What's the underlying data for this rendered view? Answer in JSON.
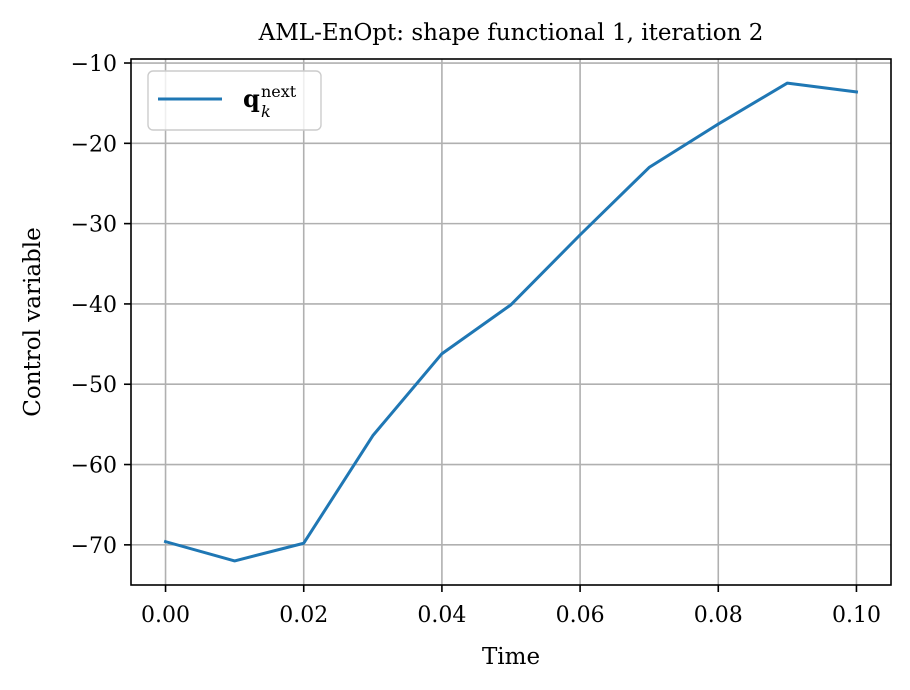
{
  "chart_data": {
    "type": "line",
    "title": "AML-EnOpt: shape functional 1, iteration 2",
    "xlabel": "Time",
    "ylabel": "Control variable",
    "xlim": [
      -0.005,
      0.105
    ],
    "ylim": [
      -75,
      -9.5
    ],
    "xticks": [
      0.0,
      0.02,
      0.04,
      0.06,
      0.08,
      0.1
    ],
    "xtick_labels": [
      "0.00",
      "0.02",
      "0.04",
      "0.06",
      "0.08",
      "0.10"
    ],
    "yticks": [
      -70,
      -60,
      -50,
      -40,
      -30,
      -20,
      -10
    ],
    "ytick_labels": [
      "−70",
      "−60",
      "−50",
      "−40",
      "−30",
      "−20",
      "−10"
    ],
    "grid": true,
    "legend_position": "top-left",
    "series": [
      {
        "name": "q",
        "name_sup": "next",
        "name_sub": "k",
        "color": "#1f77b4",
        "x": [
          0.0,
          0.01,
          0.02,
          0.03,
          0.04,
          0.05,
          0.06,
          0.07,
          0.08,
          0.09,
          0.1
        ],
        "y": [
          -69.6,
          -72.0,
          -69.8,
          -56.4,
          -46.2,
          -40.1,
          -31.4,
          -23.0,
          -17.6,
          -12.5,
          -13.6
        ]
      }
    ]
  }
}
